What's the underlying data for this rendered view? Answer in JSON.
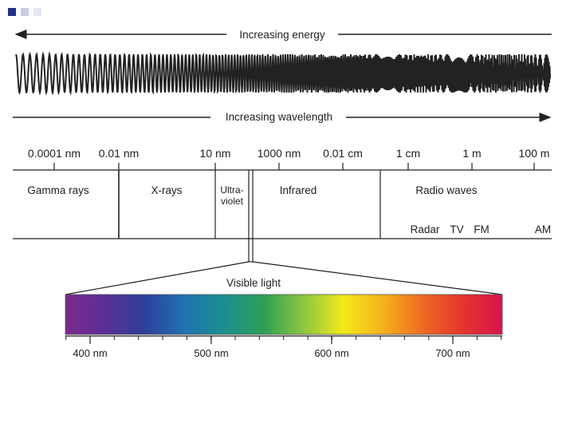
{
  "slide_marker_colors": [
    "#1f2f8a",
    "#c9cde6",
    "#e4e6f2"
  ],
  "energy_label": "Increasing energy",
  "wavelength_label": "Increasing wavelength",
  "scale_ticks": [
    "0.0001 nm",
    "0.01 nm",
    "10 nm",
    "1000 nm",
    "0.01 cm",
    "1 cm",
    "1 m",
    "100 m"
  ],
  "regions": {
    "gamma": "Gamma rays",
    "xray": "X-rays",
    "uv_line1": "Ultra-",
    "uv_line2": "violet",
    "infrared": "Infrared",
    "radio": "Radio waves"
  },
  "radio_bands": [
    "Radar",
    "TV",
    "FM",
    "AM"
  ],
  "visible_label": "Visible light",
  "visible_ticks": [
    "400 nm",
    "500 nm",
    "600 nm",
    "700 nm"
  ],
  "spectrum_colors": [
    "#7d2a8e",
    "#5a2f95",
    "#2d3f9b",
    "#1f73b0",
    "#1a8f8e",
    "#2ea054",
    "#8cc63f",
    "#f2ea1a",
    "#f6b21c",
    "#ee6a24",
    "#e3352c",
    "#d9134e"
  ]
}
